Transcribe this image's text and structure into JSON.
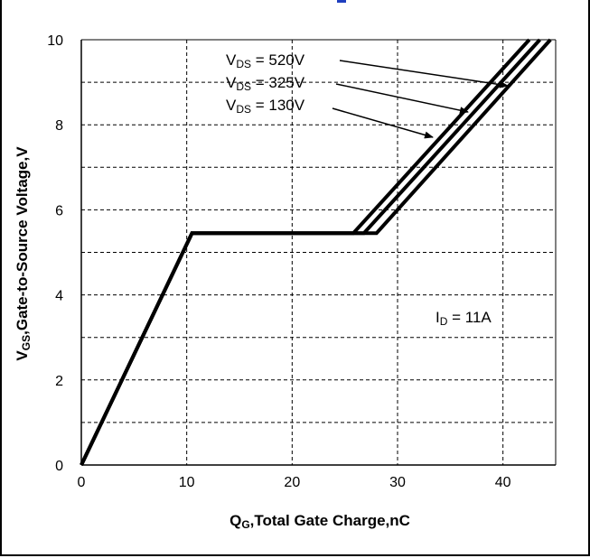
{
  "colors": {
    "line": "#000000",
    "grid": "#000000",
    "accent": "#1f3fbf"
  },
  "chart_data": {
    "type": "line",
    "xlabel_main": "Q",
    "xlabel_sub": "G",
    "xlabel_rest": ",Total Gate Charge,nC",
    "ylabel_main": "V",
    "ylabel_sub": "GS",
    "ylabel_rest": ",Gate-to-Source Voltage,V",
    "xlim": [
      0,
      45
    ],
    "ylim": [
      0,
      10
    ],
    "x_ticks": [
      0,
      10,
      20,
      30,
      40
    ],
    "y_ticks": [
      0,
      2,
      4,
      6,
      8,
      10
    ],
    "x_tick_labels": [
      "0",
      "10",
      "20",
      "30",
      "40"
    ],
    "y_tick_labels": [
      "0",
      "2",
      "4",
      "6",
      "8",
      "10"
    ],
    "grid": true,
    "series": [
      {
        "name": "VDS = 520V",
        "x": [
          0,
          10.5,
          28.0,
          44.5
        ],
        "y": [
          0,
          5.45,
          5.45,
          10.0
        ]
      },
      {
        "name": "VDS = 325V",
        "x": [
          0,
          10.5,
          26.8,
          43.5
        ],
        "y": [
          0,
          5.45,
          5.45,
          10.0
        ]
      },
      {
        "name": "VDS = 130V",
        "x": [
          0,
          10.5,
          25.8,
          42.5
        ],
        "y": [
          0,
          5.45,
          5.45,
          10.0
        ]
      }
    ],
    "annotations": [
      {
        "main": "V",
        "sub": "DS",
        "rest": " = 520V"
      },
      {
        "main": "V",
        "sub": "DS",
        "rest": " = 325V"
      },
      {
        "main": "V",
        "sub": "DS",
        "rest": " = 130V"
      },
      {
        "main": "I",
        "sub": "D",
        "rest": " = 11A"
      }
    ]
  }
}
